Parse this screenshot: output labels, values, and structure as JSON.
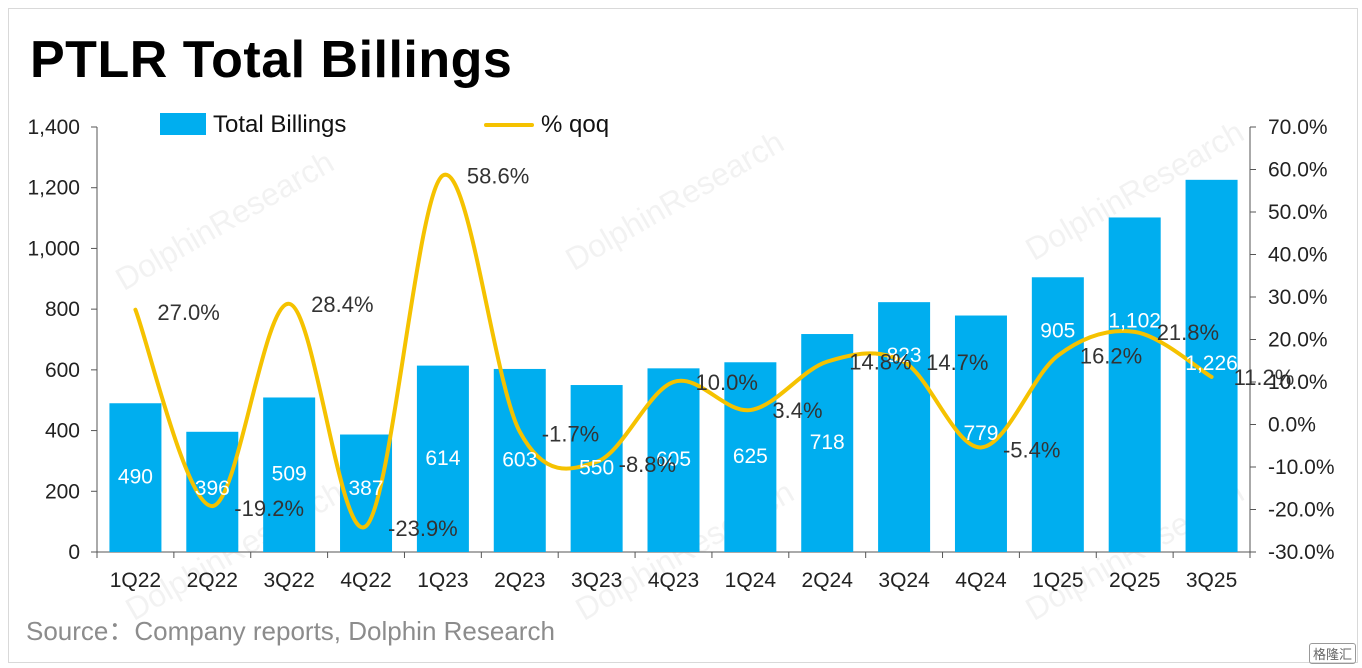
{
  "title": "PTLR Total Billings",
  "source": "Source：Company reports, Dolphin Research",
  "watermark_text": "DolphinResearch",
  "corner_badge": "格隆汇",
  "colors": {
    "bar": "#00aeef",
    "line": "#f5c200",
    "axis": "#555555"
  },
  "chart_data": {
    "type": "bar",
    "categories": [
      "1Q22",
      "2Q22",
      "3Q22",
      "4Q22",
      "1Q23",
      "2Q23",
      "3Q23",
      "4Q23",
      "1Q24",
      "2Q24",
      "3Q24",
      "4Q24",
      "1Q25",
      "2Q25",
      "3Q25"
    ],
    "series": [
      {
        "name": "Total Billings",
        "type": "bar",
        "axis": "left",
        "values": [
          490,
          396,
          509,
          387,
          614,
          603,
          550,
          605,
          625,
          718,
          823,
          779,
          905,
          1102,
          1226
        ],
        "labels": [
          "490",
          "396",
          "509",
          "387",
          "614",
          "603",
          "550",
          "605",
          "625",
          "718",
          "823",
          "779",
          "905",
          "1,102",
          "1,226"
        ]
      },
      {
        "name": "% qoq",
        "type": "line",
        "axis": "right",
        "values": [
          27.0,
          -19.2,
          28.4,
          -23.9,
          58.6,
          -1.7,
          -8.8,
          10.0,
          3.4,
          14.8,
          14.7,
          -5.4,
          16.2,
          21.8,
          11.2
        ],
        "labels": [
          "27.0%",
          "-19.2%",
          "28.4%",
          "-23.9%",
          "58.6%",
          "-1.7%",
          "-8.8%",
          "10.0%",
          "3.4%",
          "14.8%",
          "14.7%",
          "-5.4%",
          "16.2%",
          "21.8%",
          "11.2%"
        ]
      }
    ],
    "y_left": {
      "ylim": [
        0,
        1400
      ],
      "ticks": [
        "0",
        "200",
        "400",
        "600",
        "800",
        "1,000",
        "1,200",
        "1,400"
      ],
      "tick_values": [
        0,
        200,
        400,
        600,
        800,
        1000,
        1200,
        1400
      ]
    },
    "y_right": {
      "ylim": [
        -30,
        70
      ],
      "ticks": [
        "-30.0%",
        "-20.0%",
        "-10.0%",
        "0.0%",
        "10.0%",
        "20.0%",
        "30.0%",
        "40.0%",
        "50.0%",
        "60.0%",
        "70.0%"
      ],
      "tick_values": [
        -30,
        -20,
        -10,
        0,
        10,
        20,
        30,
        40,
        50,
        60,
        70
      ]
    },
    "legend": {
      "placement": "top",
      "entries": [
        "Total Billings",
        "% qoq"
      ]
    },
    "grid": false
  }
}
